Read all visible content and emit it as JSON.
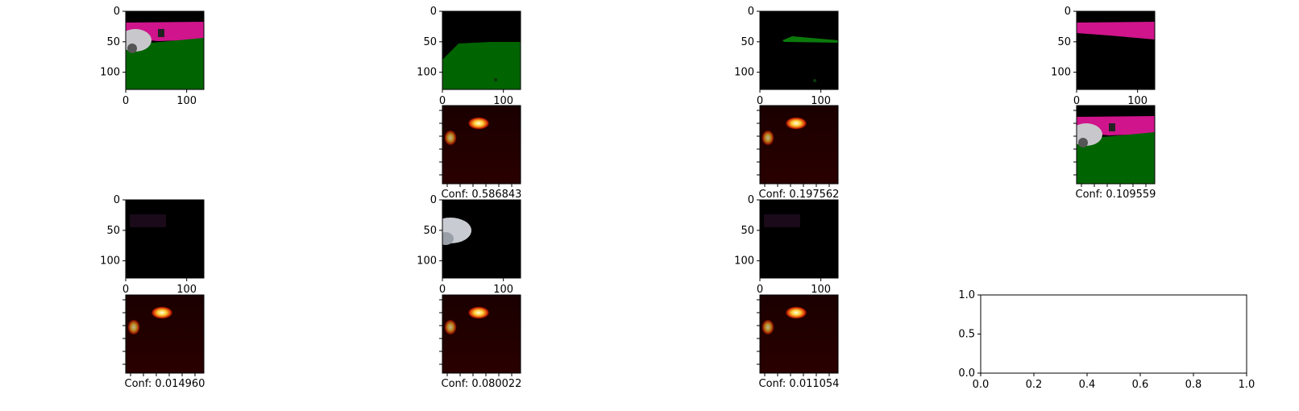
{
  "figure": {
    "panels": [
      {
        "row": 0,
        "col": 0,
        "kind": "rgb-scene",
        "xticks": [
          "0",
          "100"
        ],
        "yticks": [
          "0",
          "50",
          "100"
        ]
      },
      {
        "row": 0,
        "col": 1,
        "kind": "mask-green",
        "xticks": [
          "0",
          "100"
        ],
        "yticks": [
          "0",
          "50",
          "100"
        ]
      },
      {
        "row": 0,
        "col": 2,
        "kind": "mask-green-line",
        "xticks": [
          "0",
          "100"
        ],
        "yticks": [
          "0",
          "50",
          "100"
        ]
      },
      {
        "row": 0,
        "col": 3,
        "kind": "mask-magenta",
        "xticks": [
          "0",
          "100"
        ],
        "yticks": [
          "0",
          "50",
          "100"
        ]
      },
      {
        "row": 1,
        "col": 1,
        "kind": "heatmap",
        "caption": "Conf: 0.586843"
      },
      {
        "row": 1,
        "col": 2,
        "kind": "heatmap",
        "caption": "Conf: 0.197562"
      },
      {
        "row": 1,
        "col": 3,
        "kind": "rgb-scene",
        "caption": "Conf: 0.109559"
      },
      {
        "row": 2,
        "col": 0,
        "kind": "mask-dark",
        "xticks": [
          "0",
          "100"
        ],
        "yticks": [
          "0",
          "50",
          "100"
        ]
      },
      {
        "row": 2,
        "col": 1,
        "kind": "mask-car",
        "xticks": [
          "0",
          "100"
        ],
        "yticks": [
          "0",
          "50",
          "100"
        ]
      },
      {
        "row": 2,
        "col": 2,
        "kind": "mask-dark",
        "xticks": [
          "0",
          "100"
        ],
        "yticks": [
          "0",
          "50",
          "100"
        ]
      },
      {
        "row": 3,
        "col": 0,
        "kind": "heatmap",
        "caption": "Conf: 0.014960"
      },
      {
        "row": 3,
        "col": 1,
        "kind": "heatmap",
        "caption": "Conf: 0.080022"
      },
      {
        "row": 3,
        "col": 2,
        "kind": "heatmap",
        "caption": "Conf: 0.011054"
      }
    ]
  },
  "chart_data": {
    "type": "scatter",
    "series": [],
    "xlim": [
      0,
      1.0
    ],
    "ylim": [
      0,
      1.0
    ],
    "xticks": [
      "0.0",
      "0.2",
      "0.4",
      "0.6",
      "0.8",
      "1.0"
    ],
    "yticks": [
      "0.0",
      "0.5",
      "1.0"
    ],
    "grid": false
  },
  "colors": {
    "green": "#006400",
    "magenta": "#d0148c",
    "black": "#000000",
    "heat_hot": "#ffffe0",
    "heat_mid": "#ff9900",
    "heat_low": "#7a0000"
  }
}
